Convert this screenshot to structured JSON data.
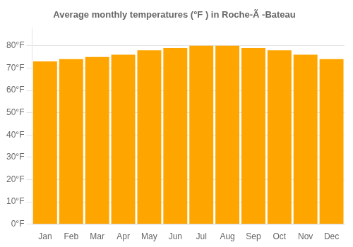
{
  "chart_data": {
    "type": "bar",
    "title": "Average monthly temperatures (°F ) in Roche-Ã -Bateau",
    "categories": [
      "Jan",
      "Feb",
      "Mar",
      "Apr",
      "May",
      "Jun",
      "Jul",
      "Aug",
      "Sep",
      "Oct",
      "Nov",
      "Dec"
    ],
    "values": [
      73,
      74,
      75,
      76,
      78,
      79,
      80,
      80,
      79,
      78,
      76,
      74
    ],
    "color": "#FFA500",
    "ylim": [
      0,
      88
    ],
    "yticks": [
      {
        "value": 0,
        "label": "0°F"
      },
      {
        "value": 10,
        "label": "10°F"
      },
      {
        "value": 20,
        "label": "20°F"
      },
      {
        "value": 30,
        "label": "30°F"
      },
      {
        "value": 40,
        "label": "40°F"
      },
      {
        "value": 50,
        "label": "50°F"
      },
      {
        "value": 60,
        "label": "60°F"
      },
      {
        "value": 70,
        "label": "70°F"
      },
      {
        "value": 80,
        "label": "80°F"
      }
    ],
    "grid": true
  }
}
